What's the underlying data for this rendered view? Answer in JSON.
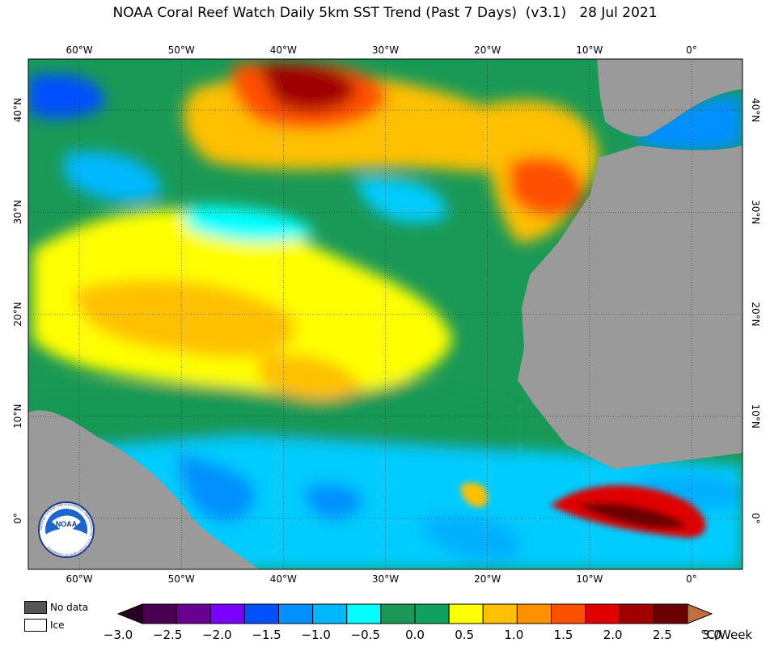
{
  "title": "NOAA Coral Reef Watch Daily 5km SST Trend (Past 7 Days)  (v3.1)   28 Jul 2021",
  "map": {
    "lon_range": [
      -65,
      5
    ],
    "lat_range": [
      -5,
      45
    ],
    "lon_ticks": [
      {
        "value": -60,
        "label": "60°W"
      },
      {
        "value": -50,
        "label": "50°W"
      },
      {
        "value": -40,
        "label": "40°W"
      },
      {
        "value": -30,
        "label": "30°W"
      },
      {
        "value": -20,
        "label": "20°W"
      },
      {
        "value": -10,
        "label": "10°W"
      },
      {
        "value": 0,
        "label": "0°"
      }
    ],
    "lat_ticks": [
      {
        "value": 40,
        "label": "40°N"
      },
      {
        "value": 30,
        "label": "30°N"
      },
      {
        "value": 20,
        "label": "20°N"
      },
      {
        "value": 10,
        "label": "10°N"
      },
      {
        "value": 0,
        "label": "0°"
      }
    ],
    "colors": {
      "land": "#9a9a9a",
      "ocean_base": "#199955",
      "gridline": "#333333"
    },
    "logo_text": "NOAA",
    "logo_ring_text": "NATIONAL OCEANIC AND ATMOSPHERIC ADMINISTRATION · U.S. DEPARTMENT OF COMMERCE"
  },
  "legend_keys": [
    {
      "label": "No data",
      "color": "#555555"
    },
    {
      "label": "Ice",
      "color": "#ffffff"
    }
  ],
  "colorbar": {
    "unit": "°C/Week",
    "tick_labels": [
      "−3.0",
      "−2.5",
      "−2.0",
      "−1.5",
      "−1.0",
      "−0.5",
      "0.0",
      "0.5",
      "1.0",
      "1.5",
      "2.0",
      "2.5",
      "3.0"
    ],
    "colors": [
      "#4a0050",
      "#6a0090",
      "#7a00ff",
      "#0050ff",
      "#0090ff",
      "#00b8ff",
      "#00ffff",
      "#199955",
      "#10a060",
      "#ffff00",
      "#ffc000",
      "#ff9000",
      "#ff5000",
      "#e00000",
      "#a00000",
      "#6a0000"
    ],
    "low_extend_color": "#2a0020",
    "high_extend_color": "#c07040"
  }
}
